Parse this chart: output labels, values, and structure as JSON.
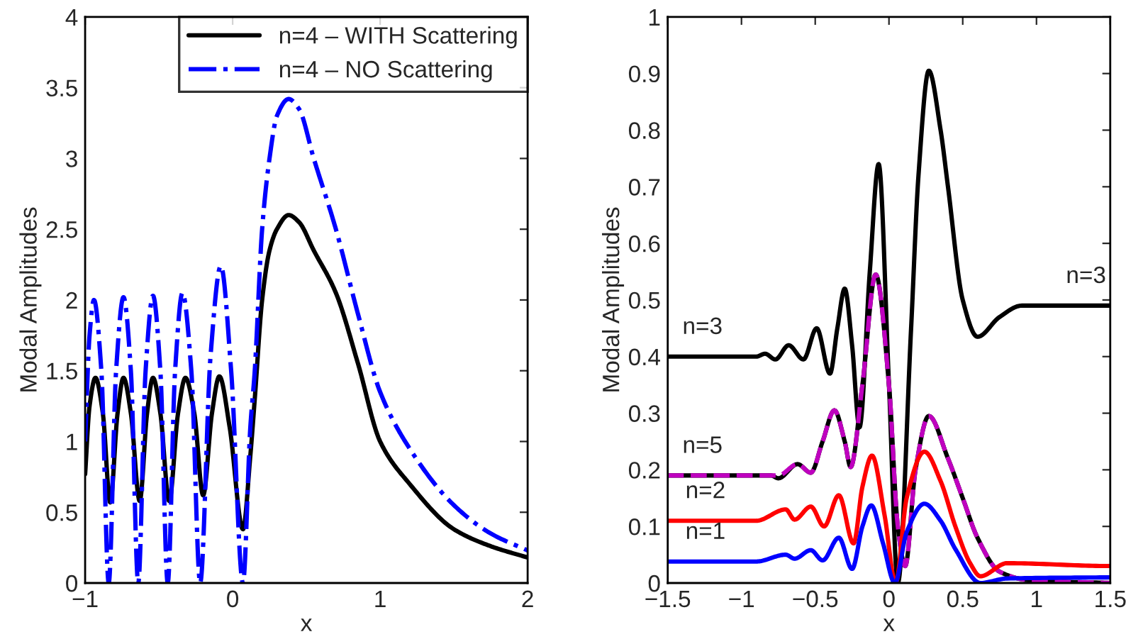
{
  "chart_data": [
    {
      "type": "line",
      "xlabel": "x",
      "ylabel": "Modal Amplitudes",
      "xlim": [
        -1,
        2
      ],
      "ylim": [
        0,
        4
      ],
      "xticks": [
        -1,
        0,
        1,
        2
      ],
      "yticks": [
        0,
        0.5,
        1,
        1.5,
        2,
        2.5,
        3,
        3.5,
        4
      ],
      "grid": false,
      "legend": "top right",
      "series": [
        {
          "name": "n=4 – WITH Scattering",
          "color": "#000000",
          "line_style": "solid",
          "x": [
            -1,
            -0.97,
            -0.93,
            -0.88,
            -0.83,
            -0.78,
            -0.74,
            -0.69,
            -0.63,
            -0.58,
            -0.54,
            -0.49,
            -0.43,
            -0.37,
            -0.32,
            -0.26,
            -0.2,
            -0.14,
            -0.09,
            -0.02,
            0.07,
            0.12,
            0.15,
            0.2,
            0.25,
            0.3,
            0.38,
            0.45,
            0.55,
            0.7,
            0.85,
            1,
            1.2,
            1.5,
            1.75,
            2
          ],
          "values": [
            0.77,
            1.25,
            1.45,
            1.2,
            0.57,
            1.2,
            1.45,
            1.2,
            0.58,
            1.2,
            1.45,
            1.2,
            0.58,
            1.2,
            1.45,
            1.2,
            0.62,
            1.2,
            1.46,
            1.1,
            0.38,
            0.9,
            1.3,
            2.0,
            2.35,
            2.5,
            2.6,
            2.55,
            2.35,
            2.05,
            1.55,
            1.0,
            0.7,
            0.38,
            0.26,
            0.18
          ]
        },
        {
          "name": "n=4 – NO Scattering",
          "color": "#0000ff",
          "line_style": "dashdot",
          "x": [
            -1,
            -0.97,
            -0.94,
            -0.89,
            -0.84,
            -0.79,
            -0.74,
            -0.69,
            -0.64,
            -0.59,
            -0.54,
            -0.49,
            -0.44,
            -0.39,
            -0.34,
            -0.28,
            -0.22,
            -0.15,
            -0.08,
            -0.01,
            0.07,
            0.12,
            0.15,
            0.2,
            0.25,
            0.3,
            0.38,
            0.45,
            0.55,
            0.7,
            0.85,
            1,
            1.2,
            1.5,
            1.75,
            2
          ],
          "values": [
            1.0,
            1.75,
            2.0,
            1.5,
            0.0,
            1.5,
            2.02,
            1.5,
            0.0,
            1.5,
            2.03,
            1.5,
            0.0,
            1.5,
            2.05,
            1.5,
            0.0,
            1.6,
            2.24,
            1.5,
            0.0,
            1.1,
            1.5,
            2.5,
            3.0,
            3.3,
            3.42,
            3.35,
            3.0,
            2.5,
            1.9,
            1.35,
            0.95,
            0.55,
            0.35,
            0.23
          ]
        }
      ]
    },
    {
      "type": "line",
      "xlabel": "x",
      "ylabel": "Modal Amplitudes",
      "xlim": [
        -1.5,
        1.5
      ],
      "ylim": [
        0,
        1
      ],
      "xticks": [
        -1.5,
        -1,
        -0.5,
        0,
        0.5,
        1,
        1.5
      ],
      "yticks": [
        0,
        0.1,
        0.2,
        0.3,
        0.4,
        0.5,
        0.6,
        0.7,
        0.8,
        0.9,
        1
      ],
      "grid": false,
      "annotations": [
        {
          "text": "n=3",
          "x": -1.4,
          "y": 0.4
        },
        {
          "text": "n=3",
          "x": 1.2,
          "y": 0.49
        },
        {
          "text": "n=5",
          "x": -1.4,
          "y": 0.19
        },
        {
          "text": "n=2",
          "x": -1.38,
          "y": 0.11
        },
        {
          "text": "n=1",
          "x": -1.38,
          "y": 0.038
        }
      ],
      "series": [
        {
          "color": "#000000",
          "line_style": "solid",
          "x": [
            -1.5,
            -1,
            -0.9,
            -0.84,
            -0.77,
            -0.68,
            -0.58,
            -0.49,
            -0.4,
            -0.35,
            -0.3,
            -0.25,
            -0.2,
            -0.13,
            -0.07,
            0,
            0.06,
            0.15,
            0.2,
            0.27,
            0.35,
            0.4,
            0.5,
            0.6,
            0.75,
            0.9,
            1.2,
            1.5
          ],
          "values": [
            0.4,
            0.4,
            0.4,
            0.405,
            0.395,
            0.42,
            0.395,
            0.45,
            0.37,
            0.45,
            0.52,
            0.42,
            0.275,
            0.55,
            0.74,
            0.35,
            0.0,
            0.45,
            0.72,
            0.905,
            0.8,
            0.7,
            0.5,
            0.435,
            0.47,
            0.49,
            0.49,
            0.49
          ]
        },
        {
          "color": "#000000",
          "line_style": "solid",
          "x": [
            -1.5,
            -0.8,
            -0.75,
            -0.62,
            -0.53,
            -0.45,
            -0.37,
            -0.3,
            -0.26,
            -0.18,
            -0.09,
            0,
            0.06,
            0.11,
            0.18,
            0.27,
            0.4,
            0.5,
            0.6,
            0.75,
            0.95,
            1.5
          ],
          "values": [
            0.19,
            0.19,
            0.185,
            0.21,
            0.195,
            0.25,
            0.305,
            0.25,
            0.205,
            0.35,
            0.545,
            0.35,
            0.1,
            0.03,
            0.2,
            0.295,
            0.22,
            0.15,
            0.08,
            0.02,
            0.005,
            0.0
          ]
        },
        {
          "color": "#bf00bf",
          "line_style": "dashed",
          "x": [
            -1.5,
            -0.8,
            -0.75,
            -0.62,
            -0.53,
            -0.45,
            -0.37,
            -0.3,
            -0.26,
            -0.18,
            -0.09,
            0,
            0.06,
            0.11,
            0.18,
            0.27,
            0.4,
            0.5,
            0.6,
            0.75,
            0.95,
            1.5
          ],
          "values": [
            0.19,
            0.19,
            0.19,
            0.21,
            0.195,
            0.25,
            0.305,
            0.25,
            0.205,
            0.35,
            0.545,
            0.35,
            0.1,
            0.03,
            0.2,
            0.295,
            0.22,
            0.15,
            0.08,
            0.02,
            0.005,
            0.0
          ]
        },
        {
          "color": "#ff0000",
          "line_style": "solid",
          "x": [
            -1.5,
            -0.9,
            -0.7,
            -0.64,
            -0.53,
            -0.44,
            -0.34,
            -0.24,
            -0.18,
            -0.115,
            -0.03,
            0.045,
            0.12,
            0.24,
            0.35,
            0.45,
            0.55,
            0.62,
            0.8,
            1.5
          ],
          "values": [
            0.11,
            0.11,
            0.13,
            0.112,
            0.135,
            0.1,
            0.155,
            0.07,
            0.17,
            0.225,
            0.12,
            0.0,
            0.15,
            0.232,
            0.18,
            0.1,
            0.035,
            0.012,
            0.035,
            0.03
          ]
        },
        {
          "color": "#0000ff",
          "line_style": "solid",
          "x": [
            -1.5,
            -0.9,
            -0.7,
            -0.64,
            -0.53,
            -0.45,
            -0.34,
            -0.25,
            -0.18,
            -0.12,
            -0.04,
            0.04,
            0.12,
            0.24,
            0.35,
            0.45,
            0.62,
            0.8,
            1.5
          ],
          "values": [
            0.038,
            0.038,
            0.05,
            0.043,
            0.058,
            0.04,
            0.08,
            0.025,
            0.1,
            0.137,
            0.07,
            0.0,
            0.09,
            0.14,
            0.11,
            0.06,
            0.0,
            0.008,
            0.01
          ]
        }
      ]
    }
  ]
}
